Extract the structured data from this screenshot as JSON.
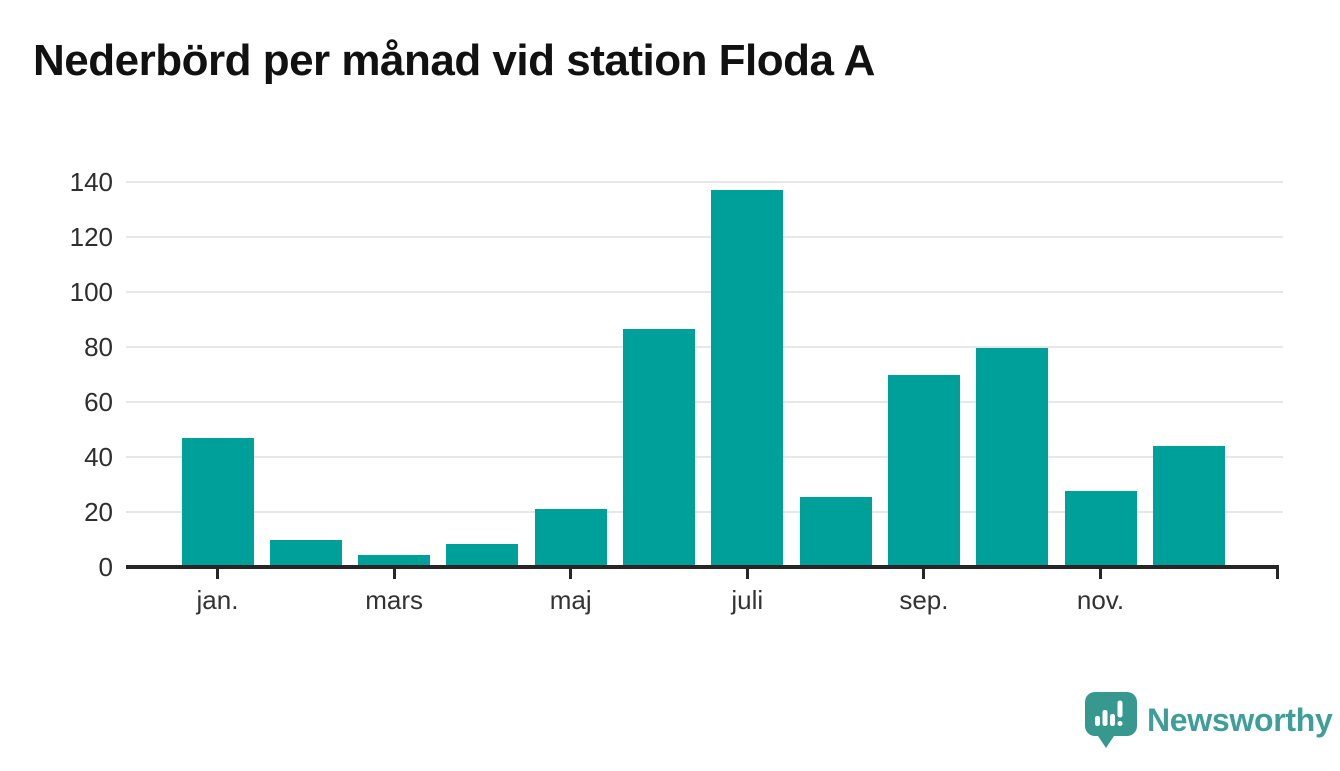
{
  "title": "Nederbörd per månad vid station Floda A",
  "chart_data": {
    "type": "bar",
    "title": "Nederbörd per månad vid station Floda A",
    "categories": [
      "jan.",
      "",
      "mars",
      "",
      "maj",
      "",
      "juli",
      "",
      "sep.",
      "",
      "nov.",
      ""
    ],
    "values": [
      47,
      10,
      4.5,
      8.5,
      21,
      86.5,
      137,
      25.5,
      70,
      79.5,
      27.5,
      44
    ],
    "x_tick_labels": [
      "jan.",
      "mars",
      "maj",
      "juli",
      "sep.",
      "nov."
    ],
    "y_ticks": [
      0,
      20,
      40,
      60,
      80,
      100,
      120,
      140
    ],
    "ylim": [
      0,
      140
    ],
    "xlabel": "",
    "ylabel": "",
    "grid": "horizontal-only",
    "legend": "none",
    "bar_color": "#00a09a"
  },
  "colors": {
    "bar": "#00a09a",
    "axis": "#262626",
    "grid": "#e7e7e7",
    "title": "#111111",
    "tick_label": "#333333",
    "logo_text": "#3f9e98",
    "logo_icon": "#37988f"
  },
  "branding": {
    "logo_text": "Newsworthy",
    "logo_icon": "newsworthy-chart-speech-bubble-icon"
  }
}
